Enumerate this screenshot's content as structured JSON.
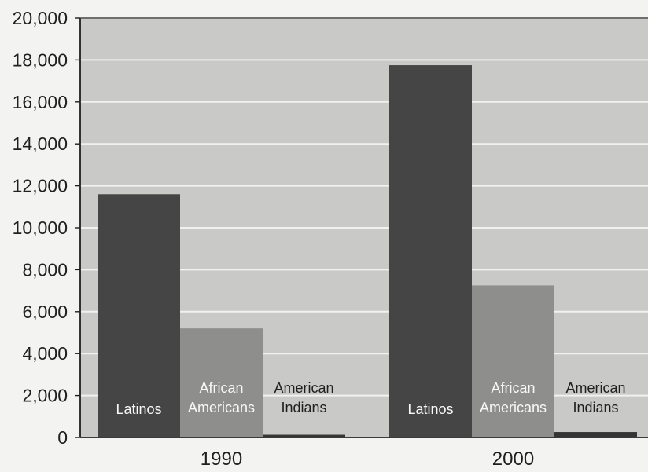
{
  "colors": {
    "page_background": "#f3f3f2",
    "plot_background": "#c9c9c7",
    "gridline": "#f1f1f0",
    "axis": "#1f1f1f",
    "text": "#1f1f1f",
    "bar_label_text": "#f8f8f8"
  },
  "chart_data": {
    "type": "bar",
    "categories": [
      "1990",
      "2000"
    ],
    "ylim": [
      0,
      20000
    ],
    "y_ticks": [
      "0",
      "2,000",
      "4,000",
      "6,000",
      "8,000",
      "10,000",
      "12,000",
      "14,000",
      "16,000",
      "18,000",
      "20,000"
    ],
    "grid": true,
    "legend": "none",
    "series": [
      {
        "name": "Latinos",
        "label_lines": [
          "Latinos"
        ],
        "values": [
          11600,
          17750
        ],
        "color": "#454545"
      },
      {
        "name": "African Americans",
        "label_lines": [
          "African",
          "Americans"
        ],
        "values": [
          5200,
          7250
        ],
        "color": "#8e8e8d"
      },
      {
        "name": "American Indians",
        "label_lines": [
          "American",
          "Indians"
        ],
        "values": [
          130,
          260
        ],
        "color": "#353535"
      }
    ]
  }
}
